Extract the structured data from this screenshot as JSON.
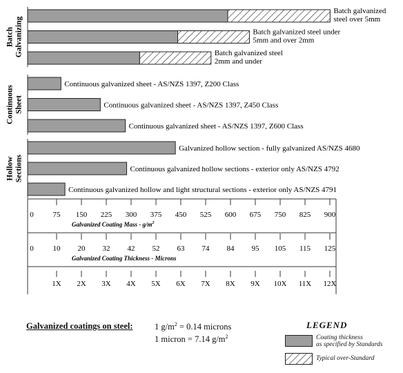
{
  "chart_data": {
    "type": "bar",
    "orientation": "horizontal",
    "stacked": true,
    "groups": [
      {
        "name_lines": [
          "Batch",
          "Galvanizing"
        ],
        "bars": [
          {
            "label_lines": [
              "Batch galvanized",
              "steel over 5mm"
            ],
            "standard": 600,
            "over": 307
          },
          {
            "label_lines": [
              "Batch galvanized steel under",
              "5mm and over 2mm"
            ],
            "standard": 450,
            "over": 215
          },
          {
            "label_lines": [
              "Batch galvanized steel",
              "2mm and under"
            ],
            "standard": 336,
            "over": 214
          }
        ]
      },
      {
        "name_lines": [
          "Continuous",
          "Sheet"
        ],
        "bars": [
          {
            "label_lines": [
              "Continuous galvanized sheet -  AS/NZS 1397, Z200 Class"
            ],
            "standard": 100,
            "over": 0
          },
          {
            "label_lines": [
              "Continuous galvanized sheet -  AS/NZS 1397, Z450 Class"
            ],
            "standard": 218,
            "over": 0
          },
          {
            "label_lines": [
              "Continuous galvanized sheet -  AS/NZS 1397, Z600 Class"
            ],
            "standard": 293,
            "over": 0
          }
        ]
      },
      {
        "name_lines": [
          "Hollow",
          "Sections"
        ],
        "bars": [
          {
            "label_lines": [
              "Galvanized hollow section - fully galvanized AS/NZS 4680"
            ],
            "standard": 443,
            "over": 0
          },
          {
            "label_lines": [
              "Continuous galvanized hollow  sections - exterior only AS/NZS 4792"
            ],
            "standard": 297,
            "over": 0
          },
          {
            "label_lines": [
              "Continuous galvanized hollow and light structural  sections - exterior only AS/NZS 4791"
            ],
            "standard": 112,
            "over": 0
          }
        ]
      }
    ],
    "axes": [
      {
        "title": "Galvanized Coating Mass - g/m²",
        "ticks": [
          "0",
          "75",
          "150",
          "225",
          "300",
          "375",
          "450",
          "525",
          "600",
          "675",
          "750",
          "825",
          "900"
        ],
        "xlim": [
          0,
          900
        ]
      },
      {
        "title": "Galvanized Coating Thickness - Microns",
        "ticks": [
          "0",
          "10",
          "20",
          "32",
          "42",
          "52",
          "63",
          "74",
          "84",
          "95",
          "105",
          "115",
          "125"
        ]
      },
      {
        "title": "",
        "ticks": [
          "",
          "1X",
          "2X",
          "3X",
          "4X",
          "5X",
          "6X",
          "7X",
          "8X",
          "9X",
          "10X",
          "11X",
          "12X"
        ]
      }
    ],
    "colors": {
      "standard": "#9d9d9d",
      "over": "#ffffff",
      "hatch": "#222222"
    }
  },
  "conversion": {
    "lead": "Galvanized coatings on steel:",
    "line1": "1 g/m² = 0.14 microns",
    "line2": "1 micron = 7.14 g/m²"
  },
  "legend": {
    "title": "LEGEND",
    "standard_label_1": "Coating thickness",
    "standard_label_2": "as specified by Standards",
    "over_label": "Typical over-Standard"
  }
}
